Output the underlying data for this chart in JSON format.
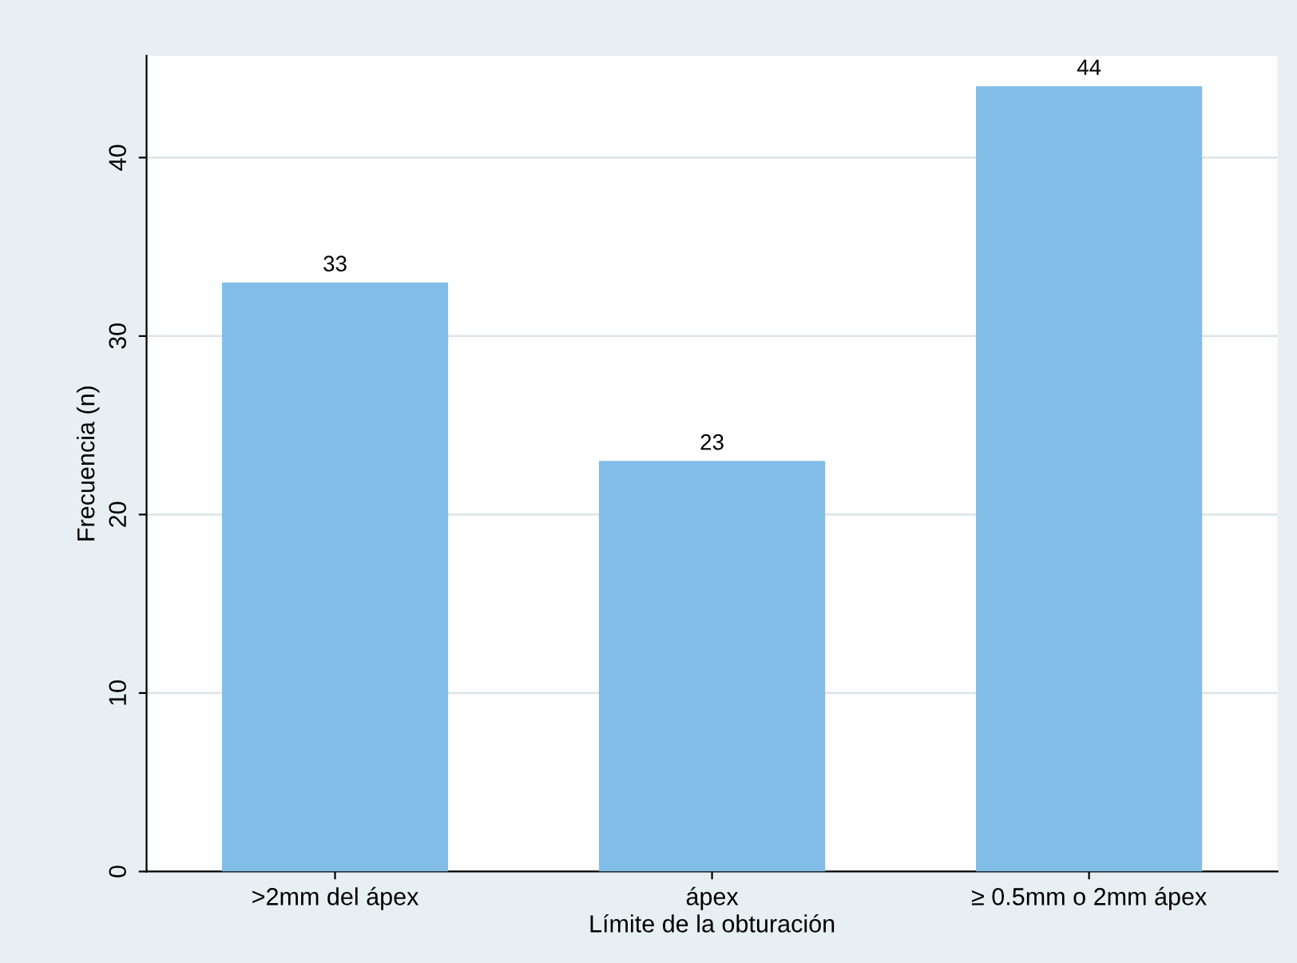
{
  "chart_data": {
    "type": "bar",
    "xlabel": "Límite de la obturación",
    "ylabel": "Frecuencia (n)",
    "categories": [
      ">2mm del ápex",
      "ápex",
      "≥ 0.5mm o 2mm ápex"
    ],
    "values": [
      33,
      23,
      44
    ],
    "color": "#82bde8",
    "ylim": [
      0,
      45.7
    ],
    "yticks": [
      0,
      10,
      20,
      30,
      40
    ],
    "grid": "y",
    "data_labels": true
  }
}
